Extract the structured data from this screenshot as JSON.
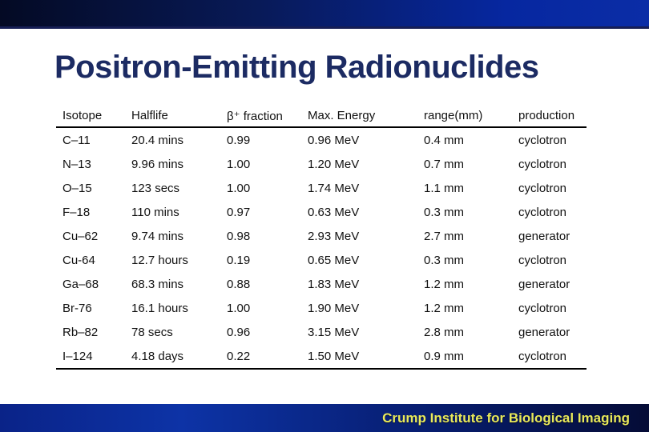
{
  "slide": {
    "title": "Positron-Emitting Radionuclides",
    "footer": "Crump Institute for Biological Imaging"
  },
  "colors": {
    "title_text": "#1c2b63",
    "table_text": "#111111",
    "table_rule": "#000000",
    "top_bar_gradient_left": "#040a24",
    "top_bar_gradient_right": "#0b2da6",
    "footer_bar_gradient_left": "#0d33a6",
    "footer_bar_gradient_right": "#050c36",
    "footer_text": "#e9e95a"
  },
  "table": {
    "columns": [
      "Isotope",
      "Halflife",
      "β⁺ fraction",
      "Max. Energy",
      "range(mm)",
      "production"
    ],
    "rows": [
      [
        "C–11",
        "20.4 mins",
        "0.99",
        "0.96 MeV",
        "0.4 mm",
        "cyclotron"
      ],
      [
        "N–13",
        "9.96 mins",
        "1.00",
        "1.20 MeV",
        "0.7 mm",
        "cyclotron"
      ],
      [
        "O–15",
        "123 secs",
        "1.00",
        "1.74 MeV",
        "1.1 mm",
        "cyclotron"
      ],
      [
        "F–18",
        "110 mins",
        "0.97",
        "0.63 MeV",
        "0.3 mm",
        "cyclotron"
      ],
      [
        "Cu–62",
        "9.74 mins",
        "0.98",
        "2.93 MeV",
        "2.7 mm",
        "generator"
      ],
      [
        "Cu-64",
        "12.7 hours",
        "0.19",
        "0.65 MeV",
        "0.3 mm",
        "cyclotron"
      ],
      [
        "Ga–68",
        "68.3 mins",
        "0.88",
        "1.83 MeV",
        "1.2 mm",
        "generator"
      ],
      [
        "Br-76",
        "16.1 hours",
        "1.00",
        "1.90 MeV",
        "1.2 mm",
        "cyclotron"
      ],
      [
        "Rb–82",
        "78 secs",
        "0.96",
        "3.15 MeV",
        "2.8 mm",
        "generator"
      ],
      [
        "I–124",
        "4.18 days",
        "0.22",
        "1.50 MeV",
        "0.9 mm",
        "cyclotron"
      ]
    ]
  }
}
